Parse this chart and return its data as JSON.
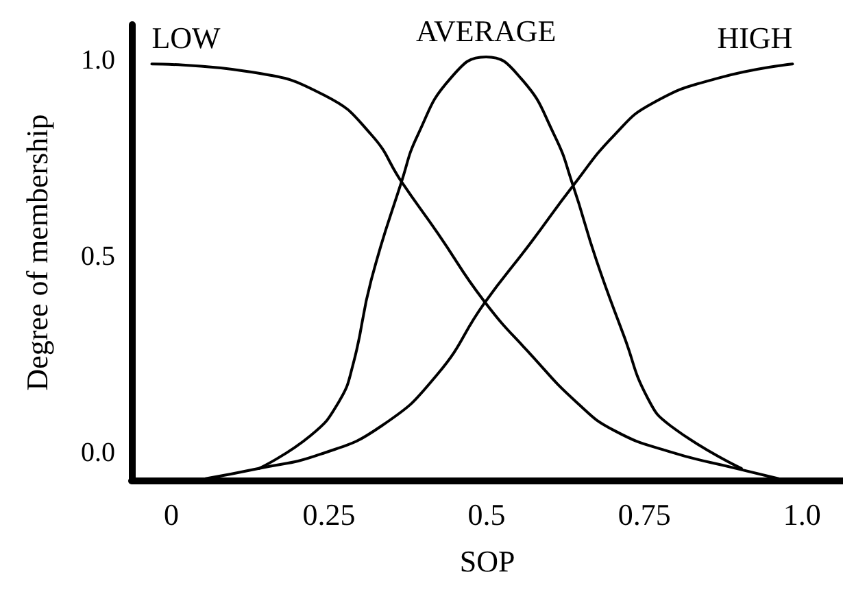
{
  "chart_data": {
    "type": "line",
    "xlabel": "SOP",
    "ylabel": "Degree of membership",
    "xlim": [
      -0.063,
      1.065
    ],
    "ylim": [
      -0.07,
      1.09
    ],
    "xticks": [
      0,
      0.25,
      0.5,
      0.75,
      {
        "value": 1,
        "label": "1.0"
      }
    ],
    "yticks": [
      {
        "value": 0,
        "label": "0.0"
      },
      {
        "value": 0.5,
        "label": "0.5"
      },
      {
        "value": 1,
        "label": "1.0"
      }
    ],
    "grid": false,
    "legend": false,
    "marker": "none",
    "line_style": "solid",
    "series": [
      {
        "name": "LOW",
        "color": "#000000",
        "x": [
          -0.031,
          0.125,
          0.243,
          0.317,
          0.365,
          0.422,
          0.496,
          0.57,
          0.643,
          0.703,
          0.792,
          0.896,
          0.963
        ],
        "values": [
          0.99,
          0.97,
          0.91,
          0.81,
          0.69,
          0.56,
          0.386,
          0.25,
          0.128,
          0.056,
          0.002,
          -0.04,
          -0.066
        ]
      },
      {
        "name": "AVERAGE",
        "color": "#000000",
        "x": [
          0.139,
          0.221,
          0.265,
          0.288,
          0.317,
          0.365,
          0.391,
          0.443,
          0.499,
          0.554,
          0.607,
          0.637,
          0.674,
          0.718,
          0.755,
          0.792,
          0.904
        ],
        "values": [
          -0.04,
          0.044,
          0.128,
          0.224,
          0.44,
          0.69,
          0.81,
          0.954,
          1.008,
          0.954,
          0.81,
          0.68,
          0.49,
          0.296,
          0.14,
          0.068,
          -0.04
        ]
      },
      {
        "name": "HIGH",
        "color": "#000000",
        "x": [
          0.054,
          0.139,
          0.236,
          0.333,
          0.422,
          0.496,
          0.57,
          0.637,
          0.703,
          0.763,
          0.867,
          0.985
        ],
        "values": [
          -0.066,
          -0.04,
          -0.004,
          0.068,
          0.2,
          0.38,
          0.535,
          0.68,
          0.81,
          0.89,
          0.954,
          0.99
        ]
      }
    ]
  }
}
